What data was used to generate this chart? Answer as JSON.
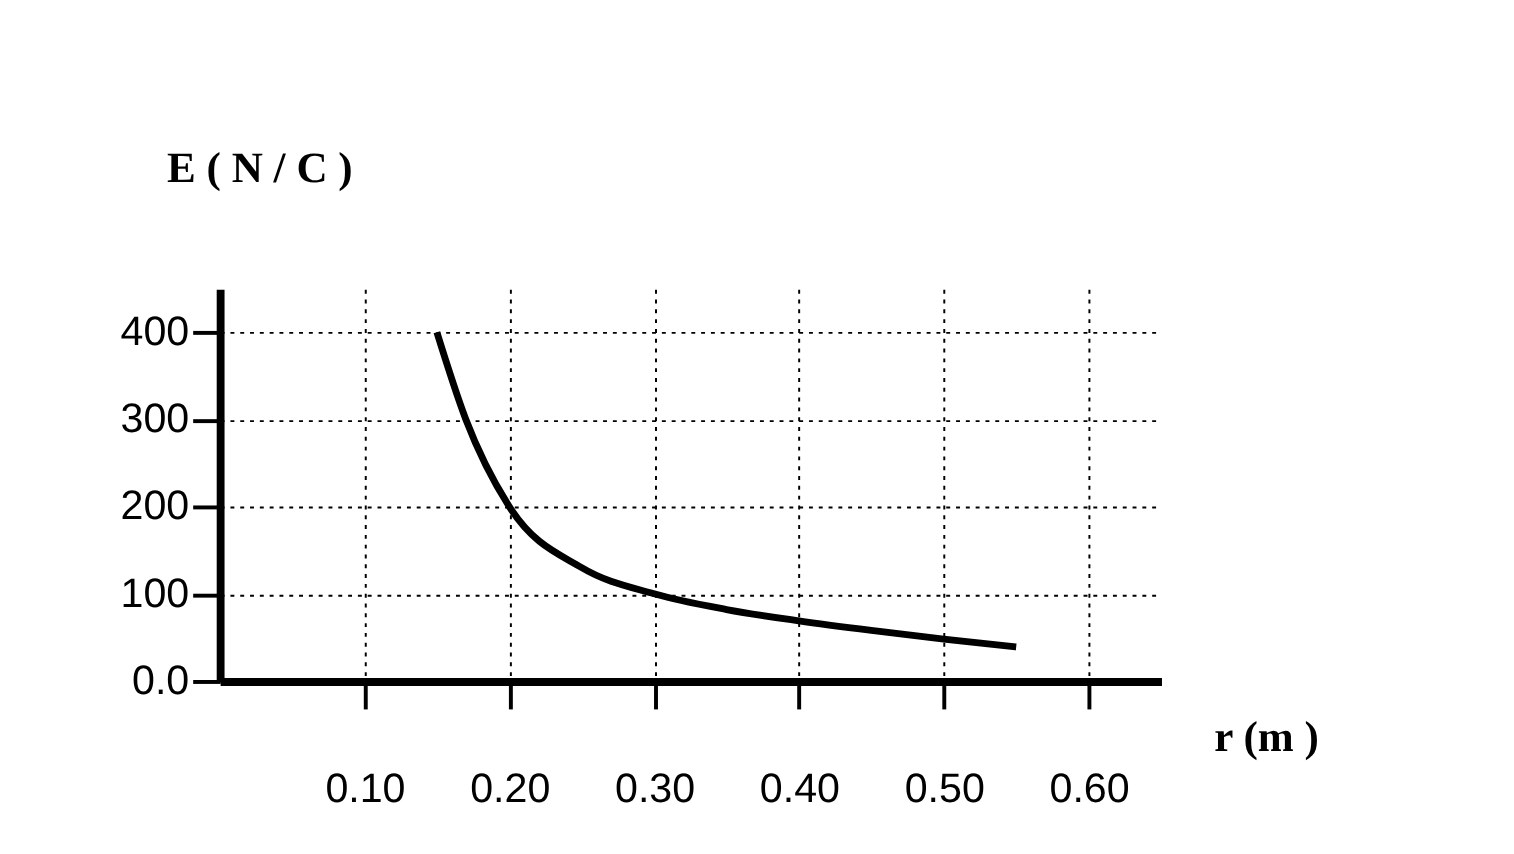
{
  "chart_data": {
    "type": "line",
    "xlabel": "r (m )",
    "ylabel": "E ( N / C )",
    "x": [
      0.15,
      0.17,
      0.2,
      0.25,
      0.3,
      0.35,
      0.4,
      0.45,
      0.5,
      0.55
    ],
    "series": [
      {
        "color": "#000000",
        "values": [
          400,
          300,
          200,
          130,
          100,
          82,
          69,
          58,
          48,
          39
        ]
      }
    ],
    "xlim": [
      0,
      0.65
    ],
    "ylim": [
      0,
      450
    ],
    "xticks": [
      {
        "value": 0.1,
        "label": "0.10"
      },
      {
        "value": 0.2,
        "label": "0.20"
      },
      {
        "value": 0.3,
        "label": "0.30"
      },
      {
        "value": 0.4,
        "label": "0.40"
      },
      {
        "value": 0.5,
        "label": "0.50"
      },
      {
        "value": 0.6,
        "label": "0.60"
      }
    ],
    "yticks": [
      {
        "value": 0,
        "label": "0.0"
      },
      100,
      200,
      300,
      400
    ],
    "grid": true,
    "marker": "none",
    "line_style": "solid"
  }
}
